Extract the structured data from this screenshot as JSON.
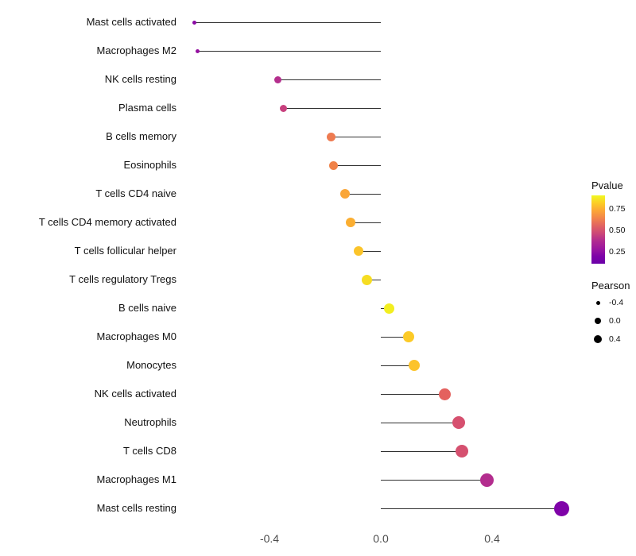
{
  "chart_data": {
    "type": "lollipop",
    "orientation": "horizontal",
    "title": "",
    "xlabel": "",
    "ylabel": "",
    "xlim": [
      -0.72,
      0.8
    ],
    "grid": "off",
    "x_ticks": [
      {
        "label": "-0.4",
        "value": -0.4
      },
      {
        "label": "0.0",
        "value": 0.0
      },
      {
        "label": "0.4",
        "value": 0.4
      }
    ],
    "encoding": {
      "x": "Pearson correlation",
      "color": "Pvalue",
      "size": "Pearson"
    },
    "points": [
      {
        "label": "Mast cells activated",
        "pearson": -0.67,
        "pvalue": 0.08,
        "color": "#8a0ba4",
        "size": 5
      },
      {
        "label": "Macrophages M2",
        "pearson": -0.66,
        "pvalue": 0.1,
        "color": "#9511a0",
        "size": 5
      },
      {
        "label": "NK cells resting",
        "pearson": -0.37,
        "pvalue": 0.25,
        "color": "#b42e8d",
        "size": 9
      },
      {
        "label": "Plasma cells",
        "pearson": -0.35,
        "pvalue": 0.32,
        "color": "#c8407e",
        "size": 9
      },
      {
        "label": "B cells memory",
        "pearson": -0.18,
        "pvalue": 0.55,
        "color": "#ee7b51",
        "size": 11
      },
      {
        "label": "Eosinophils",
        "pearson": -0.17,
        "pvalue": 0.57,
        "color": "#f08248",
        "size": 11
      },
      {
        "label": "T cells CD4 naive",
        "pearson": -0.13,
        "pvalue": 0.65,
        "color": "#faa638",
        "size": 12
      },
      {
        "label": "T cells CD4 memory activated",
        "pearson": -0.11,
        "pvalue": 0.67,
        "color": "#fbae31",
        "size": 12
      },
      {
        "label": "T cells follicular helper",
        "pearson": -0.08,
        "pvalue": 0.75,
        "color": "#fbc42a",
        "size": 12
      },
      {
        "label": "T cells regulatory  Tregs",
        "pearson": -0.05,
        "pvalue": 0.82,
        "color": "#f6dd22",
        "size": 13
      },
      {
        "label": "B cells naive",
        "pearson": 0.03,
        "pvalue": 0.88,
        "color": "#f2ee20",
        "size": 13
      },
      {
        "label": "Macrophages M0",
        "pearson": 0.1,
        "pvalue": 0.72,
        "color": "#fcca27",
        "size": 14
      },
      {
        "label": "Monocytes",
        "pearson": 0.12,
        "pvalue": 0.7,
        "color": "#fcc32b",
        "size": 14
      },
      {
        "label": "NK cells activated",
        "pearson": 0.23,
        "pvalue": 0.47,
        "color": "#e4615e",
        "size": 15
      },
      {
        "label": "Neutrophils",
        "pearson": 0.28,
        "pvalue": 0.38,
        "color": "#d6506f",
        "size": 16
      },
      {
        "label": "T cells CD8",
        "pearson": 0.29,
        "pvalue": 0.38,
        "color": "#d5506f",
        "size": 16
      },
      {
        "label": "Macrophages M1",
        "pearson": 0.38,
        "pvalue": 0.24,
        "color": "#b32d8e",
        "size": 17
      },
      {
        "label": "Mast cells resting",
        "pearson": 0.65,
        "pvalue": 0.04,
        "color": "#7f03a8",
        "size": 19
      }
    ],
    "legend": {
      "position": "right",
      "pvalue": {
        "title": "Pvalue",
        "ticks": [
          "0.75",
          "0.50",
          "0.25"
        ],
        "gradient_top_to_bottom": [
          "#f0f921",
          "#fcce25",
          "#fca636",
          "#f2844b",
          "#e16462",
          "#cc4778",
          "#b12a90",
          "#9c179e",
          "#7e03a8",
          "#6a00a8"
        ]
      },
      "pearson": {
        "title": "Pearson",
        "items": [
          {
            "label": "-0.4",
            "size": 5
          },
          {
            "label": "0.0",
            "size": 8
          },
          {
            "label": "0.4",
            "size": 10
          }
        ]
      }
    }
  }
}
